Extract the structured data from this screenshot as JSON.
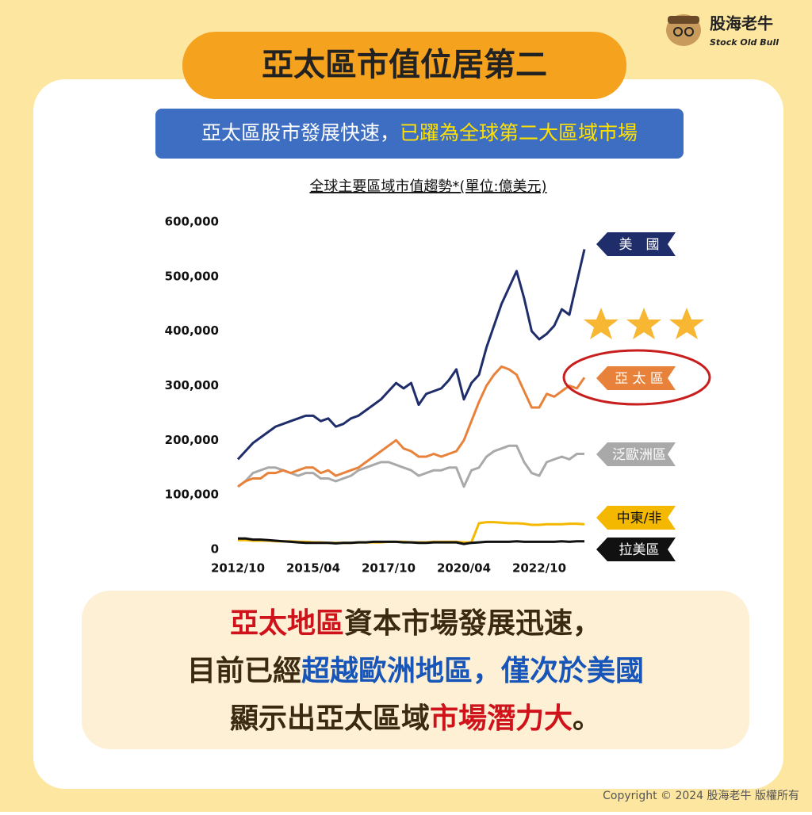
{
  "brand": {
    "name": "股海老牛",
    "sub": "Stock Old Bull"
  },
  "title": "亞太區市值位居第二",
  "banner": [
    "亞太區股市發展快速，",
    "已躍為全球第二大區域市場"
  ],
  "chart_data": {
    "type": "line",
    "title": "全球主要區域市值趨勢*(單位:億美元)",
    "categories": [
      "2012/10",
      "2013/01",
      "2013/04",
      "2013/07",
      "2013/10",
      "2014/01",
      "2014/04",
      "2014/07",
      "2014/10",
      "2015/01",
      "2015/04",
      "2015/07",
      "2015/10",
      "2016/01",
      "2016/04",
      "2016/07",
      "2016/10",
      "2017/01",
      "2017/04",
      "2017/07",
      "2017/10",
      "2018/01",
      "2018/04",
      "2018/07",
      "2018/10",
      "2019/01",
      "2019/04",
      "2019/07",
      "2019/10",
      "2020/01",
      "2020/04",
      "2020/07",
      "2020/10",
      "2021/01",
      "2021/04",
      "2021/07",
      "2021/10",
      "2022/01",
      "2022/04",
      "2022/07",
      "2022/10",
      "2023/01",
      "2023/04",
      "2023/07",
      "2023/10",
      "2024/01",
      "2024/04"
    ],
    "xticks": [
      "2012/10",
      "2015/04",
      "2017/10",
      "2020/04",
      "2022/10"
    ],
    "ylim": [
      0,
      600000
    ],
    "yticks": [
      0,
      {
        "value": 100000,
        "label": "100,000"
      },
      {
        "value": 200000,
        "label": "200,000"
      },
      {
        "value": 300000,
        "label": "300,000"
      },
      {
        "value": 400000,
        "label": "400,000"
      },
      {
        "value": 500000,
        "label": "500,000"
      },
      {
        "value": 600000,
        "label": "600,000"
      }
    ],
    "grid": false,
    "series": [
      {
        "name": "泛歐洲區",
        "color": "#a9a9a9",
        "values": [
          115000,
          125000,
          140000,
          145000,
          150000,
          150000,
          145000,
          140000,
          135000,
          140000,
          140000,
          130000,
          130000,
          125000,
          130000,
          135000,
          145000,
          150000,
          155000,
          160000,
          160000,
          155000,
          150000,
          145000,
          135000,
          140000,
          145000,
          145000,
          150000,
          150000,
          115000,
          145000,
          150000,
          170000,
          180000,
          185000,
          190000,
          190000,
          160000,
          140000,
          135000,
          160000,
          165000,
          170000,
          165000,
          175000,
          175000
        ]
      },
      {
        "name": "亞 太 區",
        "color": "#e8823a",
        "values": [
          115000,
          125000,
          130000,
          130000,
          140000,
          140000,
          145000,
          140000,
          145000,
          150000,
          150000,
          140000,
          145000,
          135000,
          140000,
          145000,
          150000,
          160000,
          170000,
          180000,
          190000,
          200000,
          185000,
          180000,
          170000,
          170000,
          175000,
          170000,
          175000,
          180000,
          200000,
          235000,
          270000,
          300000,
          320000,
          335000,
          330000,
          320000,
          290000,
          260000,
          260000,
          285000,
          280000,
          290000,
          300000,
          295000,
          315000
        ]
      },
      {
        "name": "中東/非",
        "color": "#f5b800",
        "values": [
          17000,
          17000,
          16000,
          16000,
          16000,
          15000,
          15000,
          15000,
          14000,
          14000,
          13000,
          13000,
          12000,
          12000,
          12000,
          12000,
          13000,
          13000,
          13000,
          13000,
          14000,
          14000,
          14000,
          13000,
          13000,
          13000,
          14000,
          14000,
          14000,
          14000,
          13000,
          13000,
          48000,
          50000,
          50000,
          49000,
          48000,
          48000,
          47000,
          45000,
          45000,
          46000,
          46000,
          46000,
          47000,
          47000,
          46000
        ]
      },
      {
        "name": "拉美區",
        "color": "#111111",
        "values": [
          20000,
          20000,
          18000,
          18000,
          17000,
          16000,
          15000,
          14000,
          13000,
          12000,
          12000,
          12000,
          12000,
          11000,
          12000,
          12000,
          13000,
          13000,
          14000,
          14000,
          14000,
          14000,
          13000,
          13000,
          12000,
          12000,
          13000,
          13000,
          13000,
          13000,
          10000,
          12000,
          13000,
          14000,
          14000,
          14000,
          14000,
          15000,
          14000,
          14000,
          14000,
          14000,
          14000,
          15000,
          14000,
          15000,
          15000
        ]
      },
      {
        "name": "美　國",
        "color": "#1f2d6b",
        "values": [
          165000,
          180000,
          195000,
          205000,
          215000,
          225000,
          230000,
          235000,
          240000,
          245000,
          245000,
          235000,
          240000,
          225000,
          230000,
          240000,
          245000,
          255000,
          265000,
          275000,
          290000,
          305000,
          295000,
          305000,
          265000,
          285000,
          290000,
          295000,
          310000,
          330000,
          275000,
          305000,
          320000,
          370000,
          410000,
          450000,
          480000,
          510000,
          460000,
          400000,
          385000,
          395000,
          410000,
          440000,
          430000,
          490000,
          550000
        ]
      }
    ]
  },
  "caption": [
    [
      "亞太地區",
      "資本市場發展迅速，"
    ],
    [
      "目前已經",
      "超越歐洲地區，僅次於美國"
    ],
    [
      "顯示出亞太區域",
      "市場潛力大",
      "。"
    ]
  ],
  "copyright": "Copyright © 2024 股海老牛 版權所有"
}
